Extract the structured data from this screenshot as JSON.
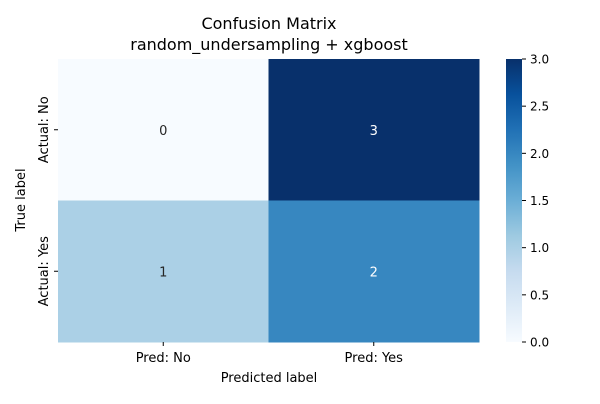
{
  "chart_data": {
    "type": "heatmap",
    "title": "Confusion Matrix",
    "subtitle": "random_undersampling + xgboost",
    "xlabel": "Predicted label",
    "ylabel": "True label",
    "x_categories": [
      "Pred: No",
      "Pred: Yes"
    ],
    "y_categories": [
      "Actual: No",
      "Actual: Yes"
    ],
    "values": [
      [
        0,
        3
      ],
      [
        1,
        2
      ]
    ],
    "colorbar": {
      "min": 0,
      "max": 3,
      "ticks": [
        "0.0",
        "0.5",
        "1.0",
        "1.5",
        "2.0",
        "2.5",
        "3.0"
      ],
      "colormap": "Blues"
    },
    "colors": {
      "low": "#f7fbff",
      "high": "#08306b"
    }
  }
}
